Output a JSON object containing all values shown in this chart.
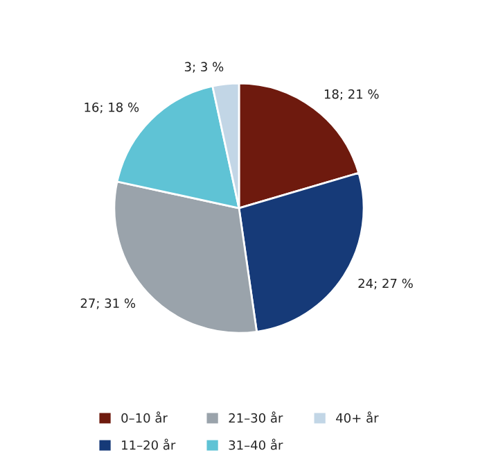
{
  "chart_data": {
    "type": "pie",
    "categories": [
      "0–10 år",
      "11–20 år",
      "21–30 år",
      "31–40 år",
      "40+ år"
    ],
    "values": [
      18,
      24,
      27,
      16,
      3
    ],
    "value_labels": [
      "18; 21 %",
      "24; 27 %",
      "27; 31 %",
      "16; 18 %",
      "3; 3 %"
    ],
    "colors": [
      "#6e1a0e",
      "#163a78",
      "#9aa3ab",
      "#5fc3d5",
      "#c2d6e6"
    ],
    "legend": "bottom"
  }
}
